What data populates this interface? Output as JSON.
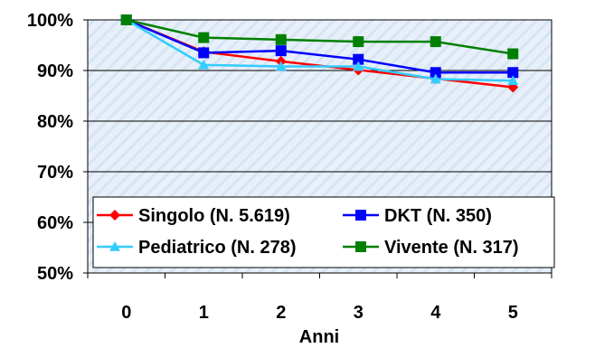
{
  "chart_data": {
    "type": "line",
    "xlabel": "Anni",
    "ylabel": "",
    "x": [
      0,
      1,
      2,
      3,
      4,
      5
    ],
    "x_tick_labels": [
      "0",
      "1",
      "2",
      "3",
      "4",
      "5"
    ],
    "ylim": [
      50,
      100
    ],
    "y_ticks": [
      50,
      60,
      70,
      80,
      90,
      100
    ],
    "y_tick_labels": [
      "50%",
      "60%",
      "70%",
      "80%",
      "90%",
      "100%"
    ],
    "grid": "horizontal",
    "legend_position": "bottom-left inside plot",
    "series": [
      {
        "name": "Singolo (N. 5.619)",
        "color": "#ff0000",
        "marker": "diamond",
        "values": [
          100,
          93.7,
          91.8,
          90.1,
          88.4,
          86.7
        ]
      },
      {
        "name": "DKT (N. 350)",
        "color": "#0000ff",
        "marker": "square",
        "values": [
          100,
          93.5,
          93.9,
          92.2,
          89.6,
          89.6
        ]
      },
      {
        "name": "Pediatrico (N. 278)",
        "color": "#33ccff",
        "marker": "triangle",
        "values": [
          100,
          91.1,
          90.8,
          90.8,
          88.3,
          88.0
        ]
      },
      {
        "name": "Vivente (N. 317)",
        "color": "#008000",
        "marker": "square",
        "values": [
          100,
          96.5,
          96.1,
          95.7,
          95.7,
          93.3
        ]
      }
    ]
  }
}
